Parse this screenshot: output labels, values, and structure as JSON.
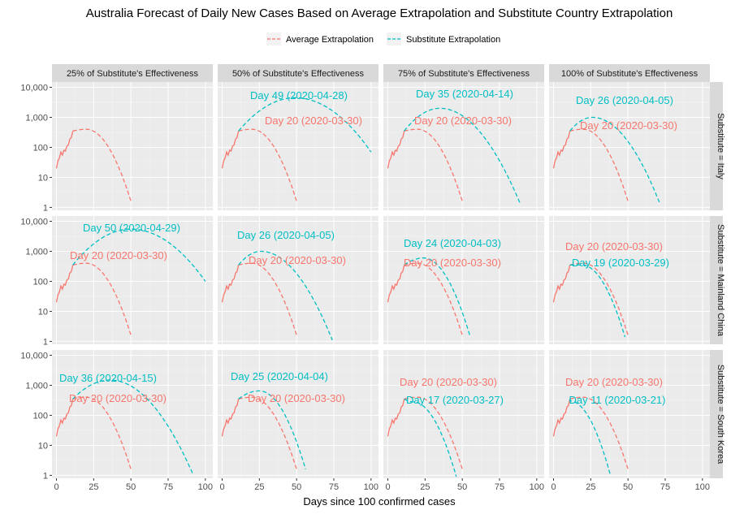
{
  "chart_data": {
    "type": "line",
    "title": "Australia Forecast of Daily New Cases Based on Average Extrapolation and Substitute Country Extrapolation",
    "xlabel": "Days since 100 confirmed cases",
    "ylabel": "",
    "xlim": [
      -3,
      105
    ],
    "ylim": [
      0.8,
      15000
    ],
    "y_scale": "log10",
    "x_ticks": [
      0,
      25,
      50,
      75,
      100
    ],
    "y_ticks": [
      1,
      10,
      100,
      1000,
      10000
    ],
    "y_tick_labels": [
      "1",
      "10",
      "100",
      "1,000",
      "10,000"
    ],
    "grid": true,
    "legend_position": "top",
    "legend": [
      {
        "key": "avg",
        "label": "Average Extrapolation",
        "color": "#F8766D"
      },
      {
        "key": "sub",
        "label": "Substitute Extrapolation",
        "color": "#00BFC4"
      }
    ],
    "columns": [
      "25% of Substitute's Effectiveness",
      "50% of Substitute's Effectiveness",
      "75% of Substitute's Effectiveness",
      "100% of Substitute's Effectiveness"
    ],
    "rows": [
      "Substitute = Italy",
      "Substitute = Mainland China",
      "Substitute = South Korea"
    ],
    "observed": {
      "x": [
        0,
        1,
        2,
        3,
        4,
        5,
        6,
        7,
        8,
        9,
        10,
        11
      ],
      "y": [
        20,
        35,
        45,
        70,
        55,
        80,
        75,
        110,
        120,
        190,
        210,
        350
      ]
    },
    "average_extrapolation": {
      "peak_day": 20,
      "peak_value": 400,
      "end_day": 50,
      "end_value": 1.6,
      "label": "Day 20 (2020-03-30)"
    },
    "panels": [
      {
        "row": 0,
        "col": 0,
        "peak_day": 20,
        "peak_value": 400,
        "end_day": 50,
        "end_value": 1.6,
        "label": "",
        "avg_label": ""
      },
      {
        "row": 0,
        "col": 1,
        "peak_day": 49,
        "peak_value": 4500,
        "end_day": 100,
        "end_value": 70,
        "label": "Day 49 (2020-04-28)",
        "avg_label": "Day 20 (2020-03-30)"
      },
      {
        "row": 0,
        "col": 2,
        "peak_day": 35,
        "peak_value": 2000,
        "end_day": 89,
        "end_value": 1.3,
        "label": "Day 35 (2020-04-14)",
        "avg_label": "Day 20 (2020-03-30)"
      },
      {
        "row": 0,
        "col": 3,
        "peak_day": 26,
        "peak_value": 1000,
        "end_day": 71,
        "end_value": 1.5,
        "label": "Day 26 (2020-04-05)",
        "avg_label": "Day 20 (2020-03-30)"
      },
      {
        "row": 1,
        "col": 0,
        "peak_day": 50,
        "peak_value": 5500,
        "end_day": 100,
        "end_value": 100,
        "label": "Day 50 (2020-04-29)",
        "avg_label": "Day 20 (2020-03-30)"
      },
      {
        "row": 1,
        "col": 1,
        "peak_day": 26,
        "peak_value": 1000,
        "end_day": 74,
        "end_value": 1.1,
        "label": "Day 26 (2020-04-05)",
        "avg_label": "Day 20 (2020-03-30)"
      },
      {
        "row": 1,
        "col": 2,
        "peak_day": 24,
        "peak_value": 600,
        "end_day": 55,
        "end_value": 1.6,
        "label": "Day 24 (2020-04-03)",
        "avg_label": "Day 20 (2020-03-30)"
      },
      {
        "row": 1,
        "col": 3,
        "peak_day": 19,
        "peak_value": 350,
        "end_day": 48,
        "end_value": 1.4,
        "label": "Day 19 (2020-03-29)",
        "avg_label": "Day 20 (2020-03-30)"
      },
      {
        "row": 2,
        "col": 0,
        "peak_day": 36,
        "peak_value": 1500,
        "end_day": 92,
        "end_value": 1.0,
        "label": "Day 36 (2020-04-15)",
        "avg_label": "Day 20 (2020-03-30)"
      },
      {
        "row": 2,
        "col": 1,
        "peak_day": 25,
        "peak_value": 650,
        "end_day": 56,
        "end_value": 1.6,
        "label": "Day 25 (2020-04-04)",
        "avg_label": "Day 20 (2020-03-30)"
      },
      {
        "row": 2,
        "col": 2,
        "peak_day": 17,
        "peak_value": 280,
        "end_day": 46,
        "end_value": 0.9,
        "label": "Day 17 (2020-03-27)",
        "avg_label": "Day 20 (2020-03-30)"
      },
      {
        "row": 2,
        "col": 3,
        "peak_day": 11,
        "peak_value": 300,
        "end_day": 38,
        "end_value": 1.1,
        "label": "Day 11 (2020-03-21)",
        "avg_label": "Day 20 (2020-03-30)"
      }
    ]
  }
}
